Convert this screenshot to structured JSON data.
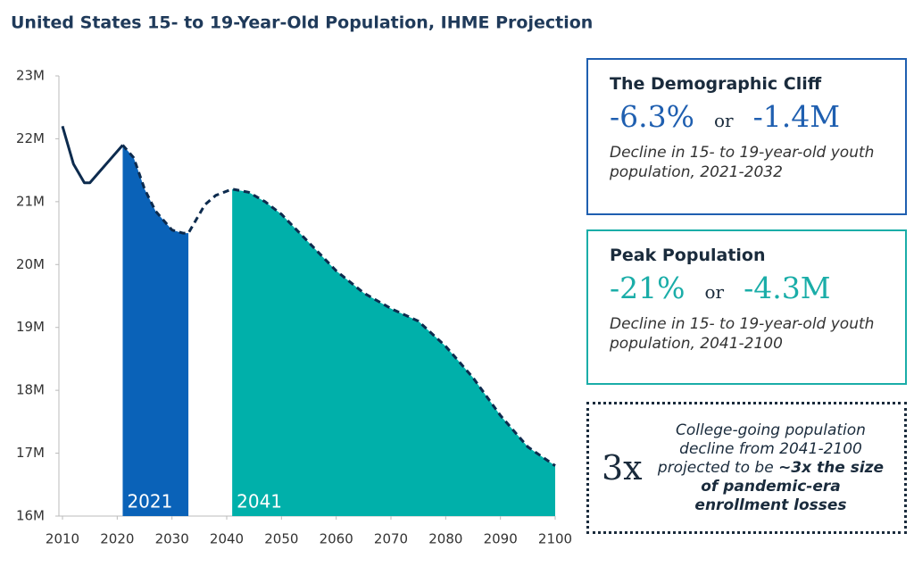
{
  "chart_data": {
    "type": "line",
    "title": "United States 15- to 19-Year-Old Population, IHME Projection",
    "x": [
      2010,
      2012,
      2014,
      2015,
      2017,
      2019,
      2021,
      2023,
      2025,
      2027,
      2030,
      2032,
      2033,
      2034,
      2036,
      2038,
      2041,
      2044,
      2047,
      2050,
      2055,
      2060,
      2065,
      2070,
      2075,
      2080,
      2085,
      2090,
      2095,
      2100
    ],
    "series": [
      {
        "color": "#0d2b4e",
        "values": [
          22.2,
          21.6,
          21.3,
          21.3,
          21.5,
          21.7,
          21.9,
          21.7,
          21.2,
          20.85,
          20.55,
          20.5,
          20.5,
          20.65,
          20.95,
          21.1,
          21.2,
          21.15,
          21.0,
          20.8,
          20.35,
          19.9,
          19.55,
          19.3,
          19.1,
          18.7,
          18.2,
          17.6,
          17.1,
          16.8
        ]
      }
    ],
    "shaded": [
      {
        "label": "2021",
        "from": 2021,
        "to": 2033,
        "color": "#0a62b8"
      },
      {
        "label": "2041",
        "from": 2041,
        "to": 2100,
        "color": "#00b0aa"
      }
    ],
    "xlim": [
      2010,
      2100
    ],
    "xticks": [
      2010,
      2020,
      2030,
      2040,
      2050,
      2060,
      2070,
      2080,
      2090,
      2100
    ],
    "ylim": [
      16,
      23
    ],
    "yticks": [
      {
        "value": 16,
        "label": "16M"
      },
      {
        "value": 17,
        "label": "17M"
      },
      {
        "value": 18,
        "label": "18M"
      },
      {
        "value": 19,
        "label": "19M"
      },
      {
        "value": 20,
        "label": "20M"
      },
      {
        "value": 21,
        "label": "21M"
      },
      {
        "value": 22,
        "label": "22M"
      },
      {
        "value": 23,
        "label": "23M"
      }
    ]
  },
  "panels": [
    {
      "title": "The Demographic Cliff",
      "pct": "-6.3%",
      "or": "or",
      "num": "-1.4M",
      "desc": "Decline in 15- to 19-year-old youth population, 2021-2032"
    },
    {
      "title": "Peak Population",
      "pct": "-21%",
      "or": "or",
      "num": "-4.3M",
      "desc": "Decline in 15- to 19-year-old youth population, 2041-2100"
    },
    {
      "big": "3x",
      "text": "College-going population decline from 2041-2100 projected to be ",
      "bold": "~3x the size of pandemic-era enrollment losses"
    }
  ]
}
